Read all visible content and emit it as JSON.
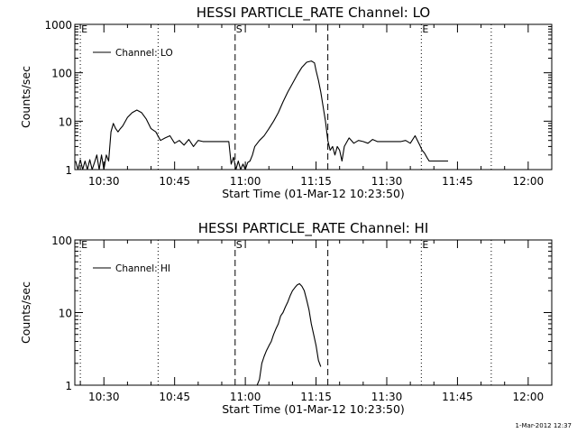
{
  "chart_data": [
    {
      "type": "line",
      "title": "HESSI PARTICLE_RATE Channel: LO",
      "xlabel": "Start Time (01-Mar-12 10:23:50)",
      "ylabel": "Counts/sec",
      "yscale": "log",
      "ylim": [
        1,
        1000
      ],
      "yticks": [
        {
          "v": 1,
          "label": "1"
        },
        {
          "v": 10,
          "label": "10"
        },
        {
          "v": 100,
          "label": "100"
        },
        {
          "v": 1000,
          "label": "1000"
        }
      ],
      "xlim": [
        "10:23:50",
        "12:05:00"
      ],
      "xticks": [
        "10:30",
        "10:45",
        "11:00",
        "11:15",
        "11:30",
        "11:45",
        "12:00"
      ],
      "legend": {
        "placement": "top-left",
        "entries": [
          "Channel: LO"
        ]
      },
      "markers": [
        {
          "time": "10:25:00",
          "style": "dotted",
          "label": "E"
        },
        {
          "time": "10:41:30",
          "style": "dotted",
          "label": ""
        },
        {
          "time": "10:57:50",
          "style": "dashed",
          "label": "S"
        },
        {
          "time": "11:17:30",
          "style": "dashed",
          "label": ""
        },
        {
          "time": "11:37:20",
          "style": "dotted",
          "label": "E"
        },
        {
          "time": "11:52:10",
          "style": "dotted",
          "label": ""
        }
      ],
      "series": [
        {
          "name": "Channel: LO",
          "x": [
            "10:24:00",
            "10:24:30",
            "10:25:00",
            "10:25:30",
            "10:26:00",
            "10:26:30",
            "10:27:00",
            "10:27:30",
            "10:28:00",
            "10:28:30",
            "10:29:00",
            "10:29:30",
            "10:30:00",
            "10:30:30",
            "10:31:00",
            "10:31:30",
            "10:32:00",
            "10:32:30",
            "10:33:00",
            "10:33:30",
            "10:34:00",
            "10:35:00",
            "10:36:00",
            "10:37:00",
            "10:38:00",
            "10:39:00",
            "10:40:00",
            "10:41:00",
            "10:42:00",
            "10:43:00",
            "10:44:00",
            "10:45:00",
            "10:46:00",
            "10:47:00",
            "10:48:00",
            "10:49:00",
            "10:50:00",
            "10:51:00",
            "10:52:00",
            "10:53:00",
            "10:54:00",
            "10:55:00",
            "10:56:00",
            "10:56:30",
            "10:57:00",
            "10:57:30",
            "10:58:00",
            "10:58:30",
            "10:59:00",
            "10:59:30",
            "11:00:00",
            "11:00:30",
            "11:01:00",
            "11:01:30",
            "11:02:00",
            "11:03:00",
            "11:04:00",
            "11:05:00",
            "11:06:00",
            "11:07:00",
            "11:08:00",
            "11:09:00",
            "11:10:00",
            "11:11:00",
            "11:12:00",
            "11:13:00",
            "11:14:00",
            "11:14:40",
            "11:15:00",
            "11:15:30",
            "11:16:00",
            "11:16:30",
            "11:17:00",
            "11:17:30",
            "11:18:00",
            "11:18:30",
            "11:19:00",
            "11:19:30",
            "11:20:00",
            "11:20:30",
            "11:21:00",
            "11:22:00",
            "11:23:00",
            "11:24:00",
            "11:25:00",
            "11:26:00",
            "11:27:00",
            "11:28:00",
            "11:29:00",
            "11:30:00",
            "11:31:00",
            "11:32:00",
            "11:33:00",
            "11:34:00",
            "11:35:00",
            "11:36:00",
            "11:37:00",
            "11:37:30",
            "11:38:00",
            "11:38:30",
            "11:39:00",
            "11:39:30",
            "11:40:00",
            "11:41:00",
            "11:42:00",
            "11:43:00"
          ],
          "y": [
            1.5,
            1,
            1.6,
            1,
            1.5,
            1,
            1.6,
            1,
            1.4,
            2,
            1,
            2,
            1,
            2,
            1.5,
            6,
            9,
            7,
            6,
            7,
            8,
            12,
            15,
            17,
            15,
            11,
            7,
            6,
            4,
            4.5,
            5,
            3.5,
            4,
            3.2,
            4.2,
            3,
            4,
            3.8,
            3.8,
            3.8,
            3.8,
            3.8,
            3.8,
            3.8,
            1.3,
            1.8,
            1,
            1.5,
            1,
            1.3,
            1,
            1.4,
            1.5,
            2,
            3,
            4,
            5,
            7,
            10,
            15,
            25,
            40,
            60,
            90,
            130,
            165,
            175,
            160,
            110,
            70,
            40,
            20,
            10,
            4,
            2.5,
            3,
            2,
            3,
            2.5,
            1.5,
            3,
            4.5,
            3.5,
            4,
            3.8,
            3.5,
            4.2,
            3.8,
            3.8,
            3.8,
            3.8,
            3.8,
            3.8,
            4,
            3.5,
            5,
            3.2,
            2.5,
            2.2,
            1.8,
            1.5,
            1.5,
            1.5,
            1.5,
            1.5,
            1.5
          ]
        }
      ]
    },
    {
      "type": "line",
      "title": "HESSI PARTICLE_RATE Channel: HI",
      "xlabel": "Start Time (01-Mar-12 10:23:50)",
      "ylabel": "Counts/sec",
      "yscale": "log",
      "ylim": [
        1,
        100
      ],
      "yticks": [
        {
          "v": 1,
          "label": "1"
        },
        {
          "v": 10,
          "label": "10"
        },
        {
          "v": 100,
          "label": "100"
        }
      ],
      "xlim": [
        "10:23:50",
        "12:05:00"
      ],
      "xticks": [
        "10:30",
        "10:45",
        "11:00",
        "11:15",
        "11:30",
        "11:45",
        "12:00"
      ],
      "legend": {
        "placement": "top-left",
        "entries": [
          "Channel: HI"
        ]
      },
      "markers": [
        {
          "time": "10:25:00",
          "style": "dotted",
          "label": "E"
        },
        {
          "time": "10:41:30",
          "style": "dotted",
          "label": ""
        },
        {
          "time": "10:57:50",
          "style": "dashed",
          "label": "S"
        },
        {
          "time": "11:17:30",
          "style": "dashed",
          "label": ""
        },
        {
          "time": "11:37:20",
          "style": "dotted",
          "label": "E"
        },
        {
          "time": "11:52:10",
          "style": "dotted",
          "label": ""
        }
      ],
      "series": [
        {
          "name": "Channel: HI",
          "x": [
            "11:02:00",
            "11:02:30",
            "11:03:00",
            "11:03:30",
            "11:04:00",
            "11:04:30",
            "11:05:00",
            "11:05:30",
            "11:06:00",
            "11:06:30",
            "11:07:00",
            "11:07:30",
            "11:08:00",
            "11:08:30",
            "11:09:00",
            "11:09:30",
            "11:10:00",
            "11:10:30",
            "11:11:00",
            "11:11:30",
            "11:12:00",
            "11:12:30",
            "11:13:00",
            "11:13:30",
            "11:14:00",
            "11:14:30",
            "11:15:00",
            "11:15:30",
            "11:16:00"
          ],
          "y": [
            1,
            1,
            1.2,
            2,
            2.5,
            3,
            3.5,
            4,
            5,
            6,
            7,
            9,
            10,
            12,
            14,
            17,
            20,
            22,
            24,
            25,
            23,
            20,
            15,
            11,
            7,
            5,
            3.5,
            2.2,
            1.8
          ]
        }
      ]
    }
  ],
  "timestamp": "1-Mar-2012 12:37"
}
